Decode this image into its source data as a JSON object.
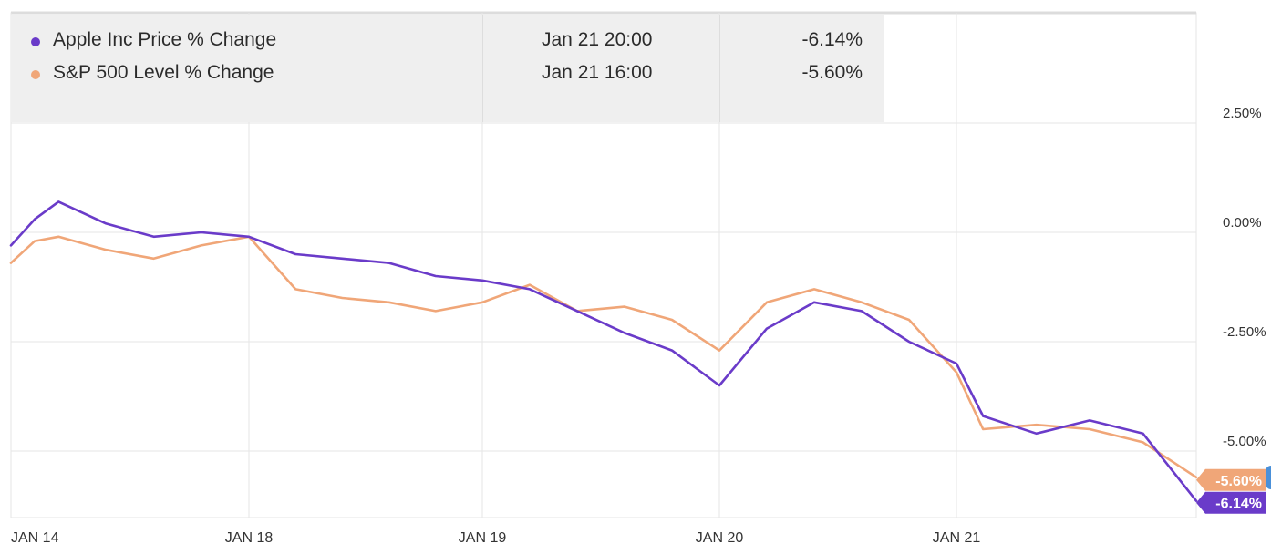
{
  "legend": [
    {
      "name": "Apple Inc Price % Change",
      "date": "Jan 21 20:00",
      "value": "-6.14%",
      "color": "#6a3bc9"
    },
    {
      "name": "S&P 500 Level % Change",
      "date": "Jan 21 16:00",
      "value": "-5.60%",
      "color": "#f0a678"
    }
  ],
  "chart_data": {
    "type": "line",
    "x_ticks": [
      "JAN 14",
      "JAN 18",
      "JAN 19",
      "JAN 20",
      "JAN 21"
    ],
    "y_ticks": [
      "2.50%",
      "0.00%",
      "-2.50%",
      "-5.00%"
    ],
    "y_tick_values": [
      2.5,
      0,
      -2.5,
      -5
    ],
    "ylim": [
      -6.5,
      4.9
    ],
    "grid": true,
    "legend_position": "top-left",
    "end_labels": [
      "-5.60%",
      "-6.14%"
    ],
    "series": [
      {
        "name": "Apple Inc Price % Change",
        "color": "#6a3bc9",
        "x": [
          0,
          0.1,
          0.2,
          0.4,
          0.6,
          0.8,
          1.0,
          1.2,
          1.4,
          1.6,
          1.8,
          2.0,
          2.2,
          2.4,
          2.6,
          2.8,
          3.0,
          3.2,
          3.4,
          3.6,
          3.8,
          4.0,
          4.1,
          4.3,
          4.5,
          4.7,
          4.9
        ],
        "y": [
          -0.3,
          0.3,
          0.7,
          0.2,
          -0.1,
          0.0,
          -0.1,
          -0.5,
          -0.6,
          -0.7,
          -1.0,
          -1.1,
          -1.3,
          -1.8,
          -2.3,
          -2.7,
          -3.5,
          -2.2,
          -1.6,
          -1.8,
          -2.5,
          -3.0,
          -4.2,
          -4.6,
          -4.3,
          -4.6,
          -6.14
        ]
      },
      {
        "name": "S&P 500 Level % Change",
        "color": "#f0a678",
        "x": [
          0,
          0.1,
          0.2,
          0.4,
          0.6,
          0.8,
          1.0,
          1.2,
          1.4,
          1.6,
          1.8,
          2.0,
          2.2,
          2.4,
          2.6,
          2.8,
          3.0,
          3.2,
          3.4,
          3.6,
          3.8,
          4.0,
          4.1,
          4.3,
          4.5,
          4.7,
          4.9
        ],
        "y": [
          -0.7,
          -0.2,
          -0.1,
          -0.4,
          -0.6,
          -0.3,
          -0.1,
          -1.3,
          -1.5,
          -1.6,
          -1.8,
          -1.6,
          -1.2,
          -1.8,
          -1.7,
          -2.0,
          -2.7,
          -1.6,
          -1.3,
          -1.6,
          -2.0,
          -3.2,
          -4.5,
          -4.4,
          -4.5,
          -4.8,
          -5.6
        ]
      }
    ]
  }
}
